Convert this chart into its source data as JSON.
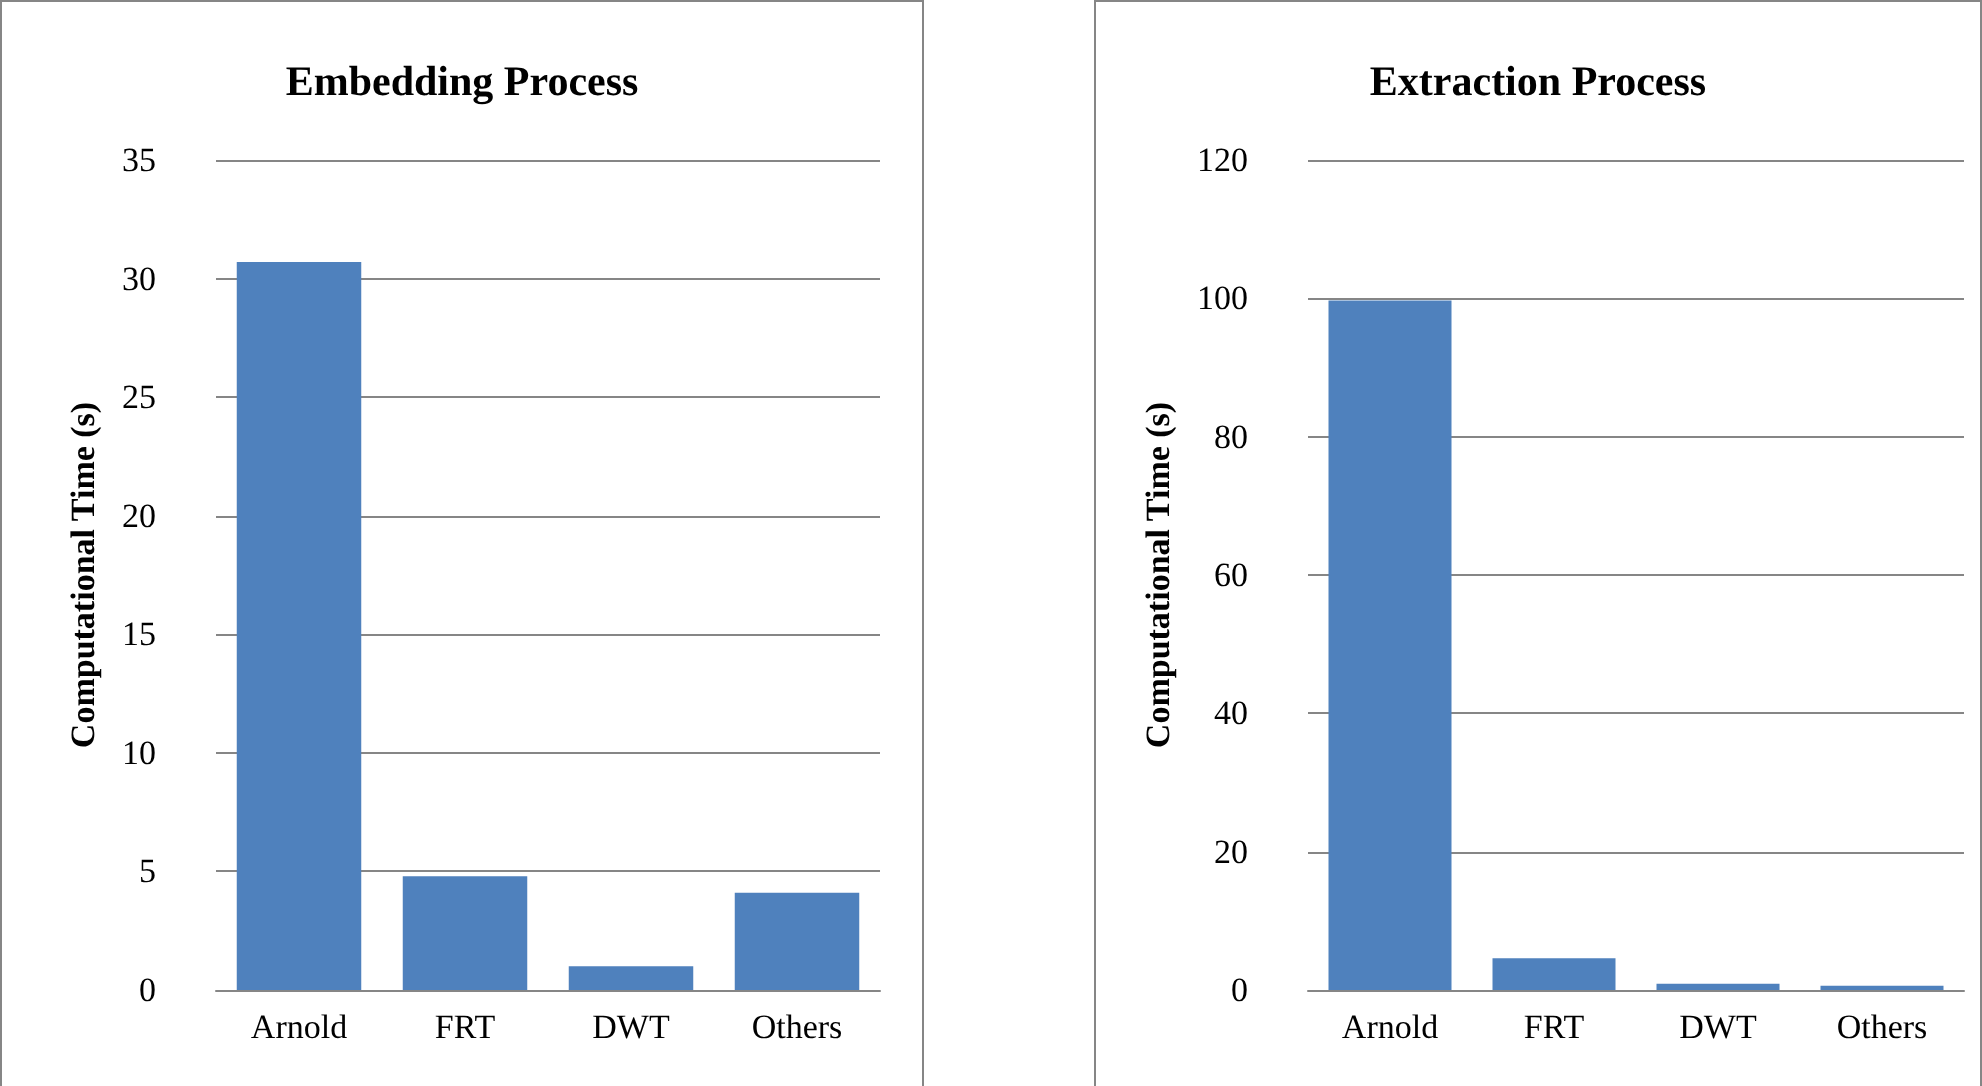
{
  "chart_data": [
    {
      "type": "bar",
      "title": "Embedding Process",
      "ylabel": "Computational Time (s)",
      "categories": [
        "Arnold",
        "FRT",
        "DWT",
        "Others"
      ],
      "values": [
        30.7,
        4.8,
        1.0,
        4.1
      ],
      "color": "#4f81bd",
      "ylim": [
        0,
        35
      ],
      "yticks": [
        0,
        5,
        10,
        15,
        20,
        25,
        30,
        35
      ],
      "grid": "y"
    },
    {
      "type": "bar",
      "title": "Extraction Process",
      "ylabel": "Computational Time (s)",
      "categories": [
        "Arnold",
        "FRT",
        "DWT",
        "Others"
      ],
      "values": [
        99.7,
        4.6,
        0.9,
        0.6
      ],
      "color": "#4f81bd",
      "ylim": [
        0,
        120
      ],
      "yticks": [
        0,
        20,
        40,
        60,
        80,
        100,
        120
      ],
      "grid": "y"
    }
  ]
}
